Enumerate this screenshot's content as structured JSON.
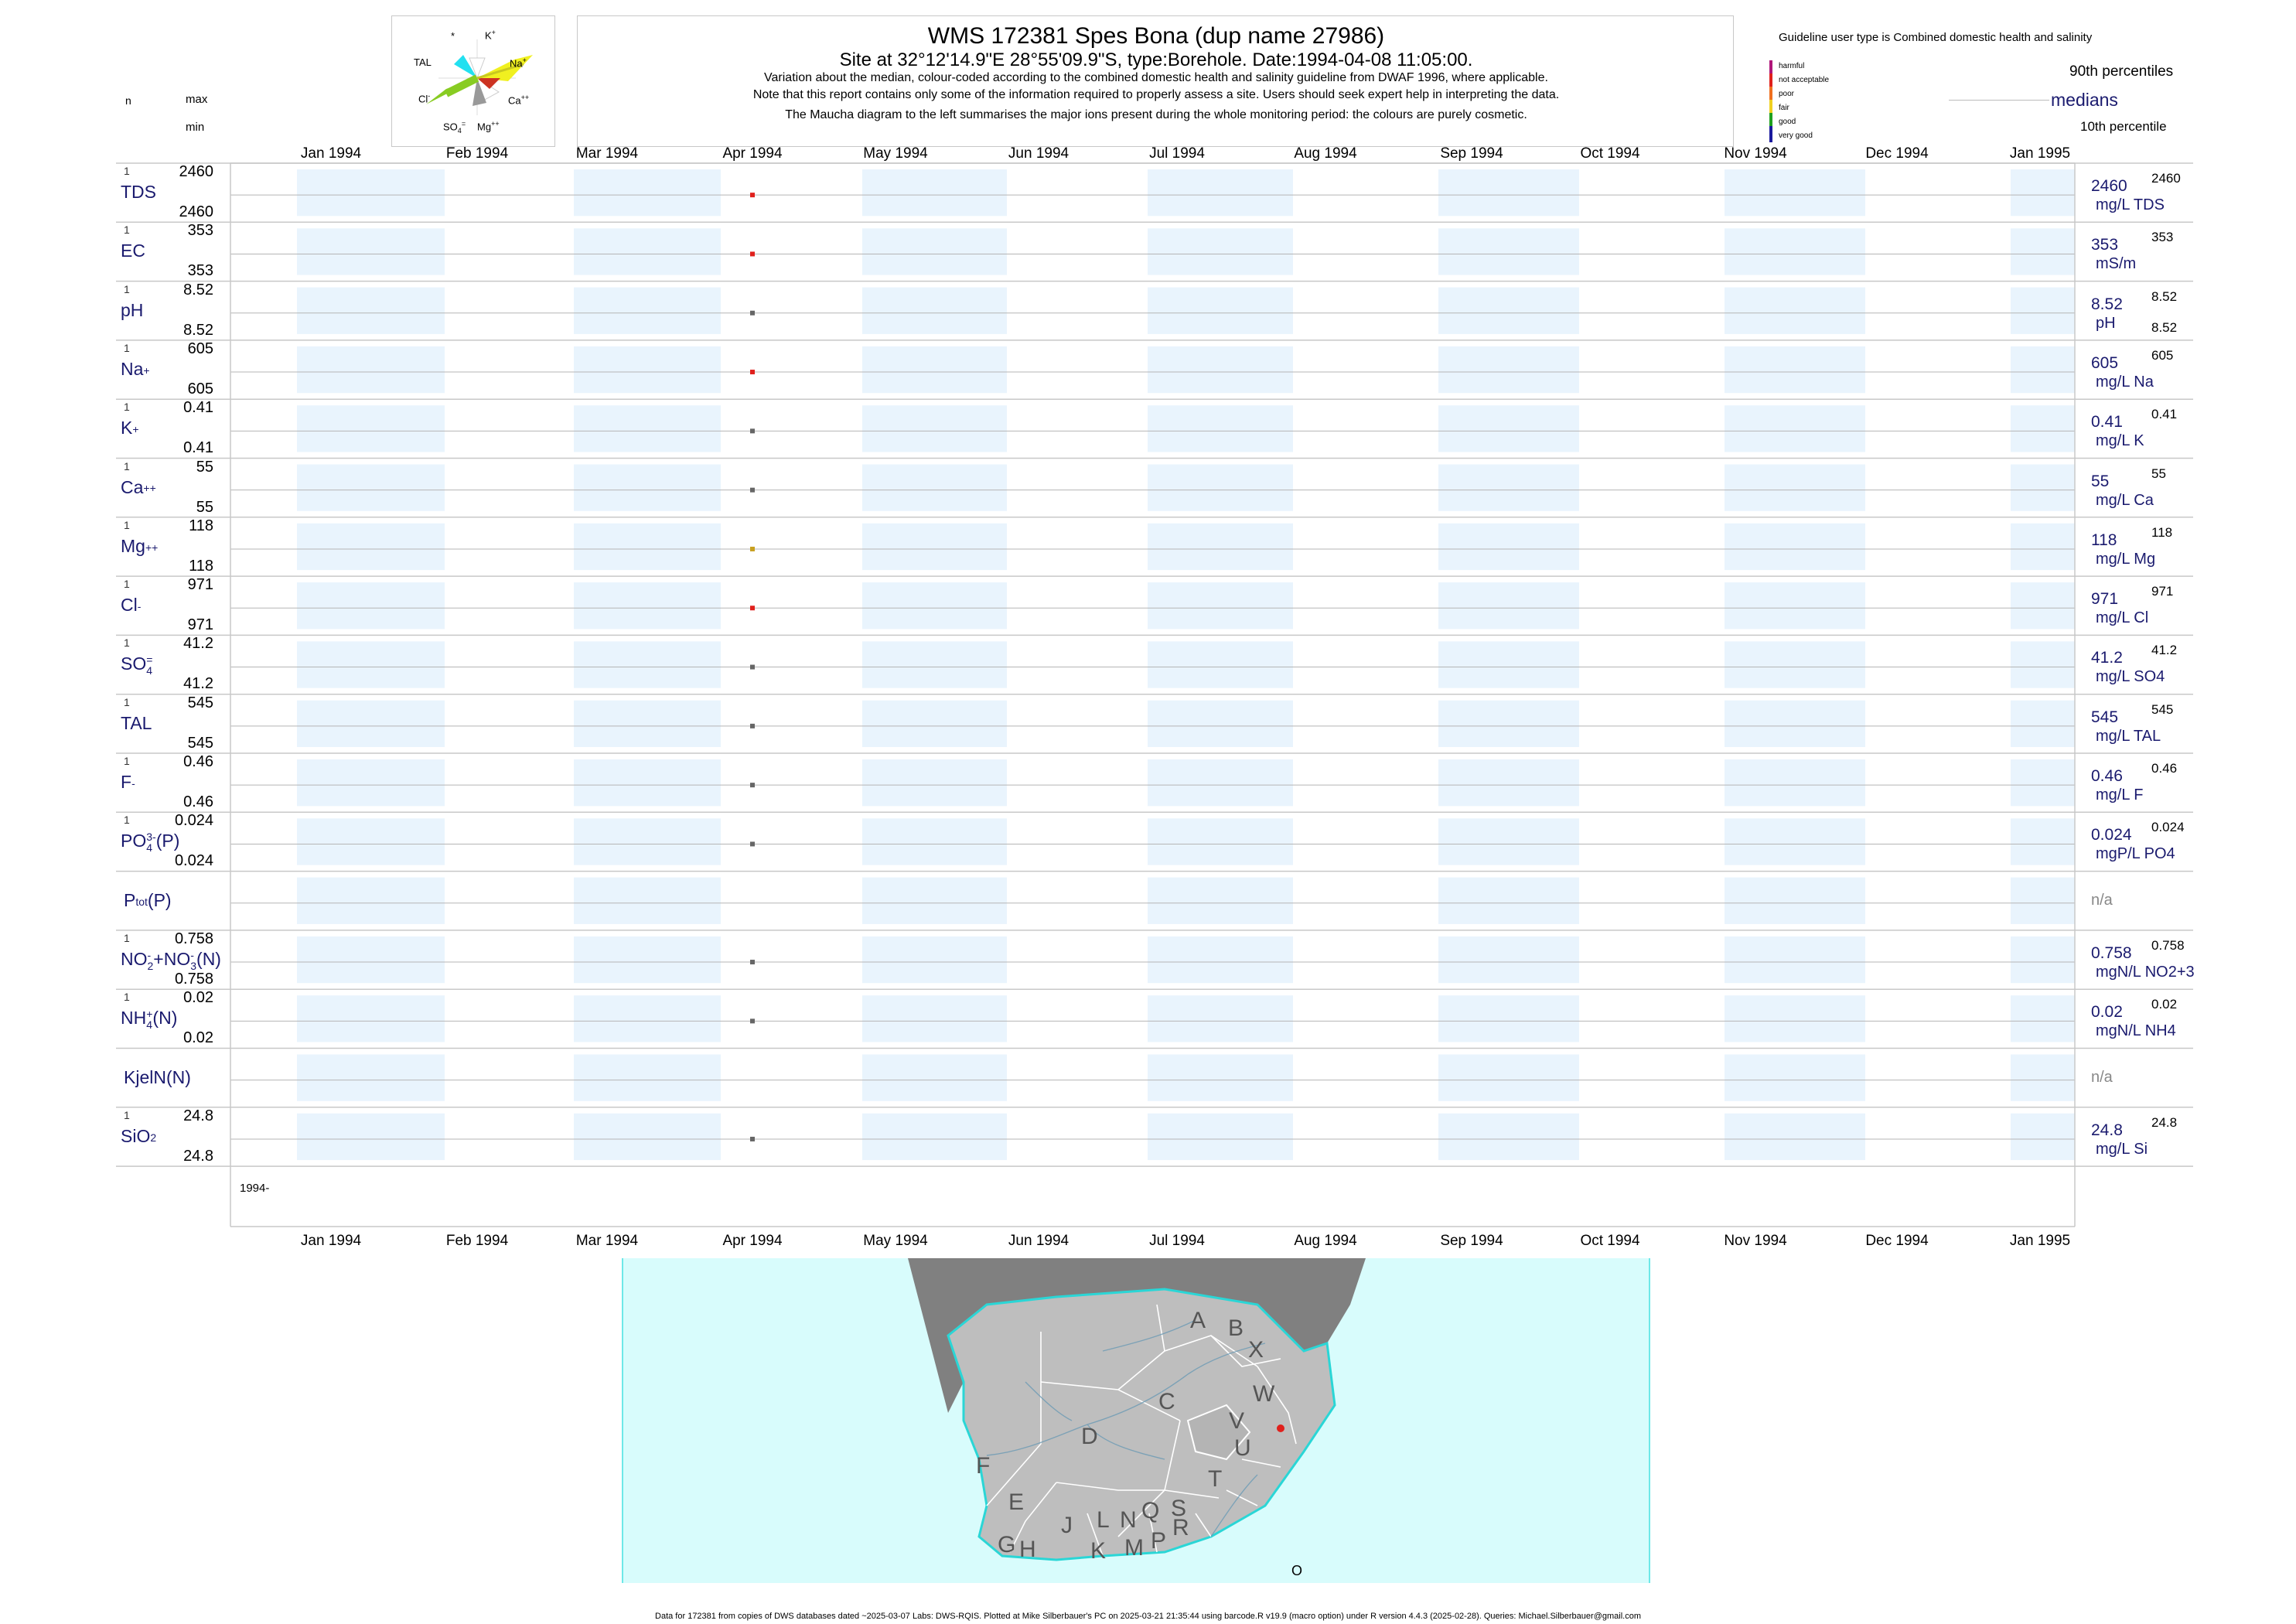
{
  "header": {
    "title": "WMS 172381  Spes Bona (dup name 27986)",
    "site": "Site at 32°12'14.9\"E 28°55'09.9\"S, type:Borehole. Date:1994-04-08 11:05:00.",
    "notes": [
      "Variation about the median,  colour-coded according to the combined domestic health and salinity guideline from DWAF 1996, where applicable.",
      "Note that this report contains only some of the information required to properly assess a site. Users should seek expert help in interpreting the data.",
      "The Maucha diagram to the left summarises the major ions present during the whole monitoring period: the colours are purely cosmetic."
    ]
  },
  "left_header": {
    "n": "n",
    "max": "max",
    "min": "min"
  },
  "maucha": {
    "labels": [
      "*",
      "K",
      "TAL",
      "Na",
      "Cl",
      "Ca",
      "SO",
      "Mg"
    ],
    "colors": {
      "TAL": "#22e0f0",
      "Na": "#f0f020",
      "Cl": "#88cc22",
      "Ca": "#999999",
      "K": "#cccccc",
      "SO4": "#cccccc",
      "Mg": "#cc3322"
    }
  },
  "legend": {
    "title": "Guideline user type is Combined domestic health and salinity",
    "classes": [
      {
        "label": "harmful",
        "color": "#b0177a"
      },
      {
        "label": "not acceptable",
        "color": "#e0201c"
      },
      {
        "label": "poor",
        "color": "#f07020"
      },
      {
        "label": "fair",
        "color": "#f0d020"
      },
      {
        "label": "good",
        "color": "#20a020"
      },
      {
        "label": "very good",
        "color": "#1a1a9e"
      }
    ],
    "p90": "90th percentiles",
    "median": "medians",
    "p10": "10th percentile"
  },
  "x_axis": {
    "months": [
      "Jan 1994",
      "Feb 1994",
      "Mar 1994",
      "Apr 1994",
      "May 1994",
      "Jun 1994",
      "Jul 1994",
      "Aug 1994",
      "Sep 1994",
      "Oct 1994",
      "Nov 1994",
      "Dec 1994",
      "Jan 1995"
    ],
    "year_label": "1994-"
  },
  "chart_data": {
    "type": "scatter",
    "sample_date": "1994-04-08",
    "series": [
      {
        "label": "TDS",
        "n": "1",
        "max": "2460",
        "min": "2460",
        "value": "2460",
        "unit": "mg/L TDS",
        "p90": "2460",
        "p10": "",
        "color": "#e0201c"
      },
      {
        "label": "EC",
        "n": "1",
        "max": "353",
        "min": "353",
        "value": "353",
        "unit": "mS/m",
        "p90": "353",
        "p10": "",
        "color": "#e0201c"
      },
      {
        "label": "pH",
        "n": "1",
        "max": "8.52",
        "min": "8.52",
        "value": "8.52",
        "unit": "pH",
        "p90": "8.52",
        "p10": "8.52",
        "color": "#666666"
      },
      {
        "label": "Na",
        "sup": "+",
        "n": "1",
        "max": "605",
        "min": "605",
        "value": "605",
        "unit": "mg/L Na",
        "p90": "605",
        "p10": "",
        "color": "#e0201c"
      },
      {
        "label": "K",
        "sup": "+",
        "n": "1",
        "max": "0.41",
        "min": "0.41",
        "value": "0.41",
        "unit": "mg/L K",
        "p90": "0.41",
        "p10": "",
        "color": "#666666"
      },
      {
        "label": "Ca",
        "sup": "++",
        "n": "1",
        "max": "55",
        "min": "55",
        "value": "55",
        "unit": "mg/L Ca",
        "p90": "55",
        "p10": "",
        "color": "#666666"
      },
      {
        "label": "Mg",
        "sup": "++",
        "n": "1",
        "max": "118",
        "min": "118",
        "value": "118",
        "unit": "mg/L Mg",
        "p90": "118",
        "p10": "",
        "color": "#c8a020"
      },
      {
        "label": "Cl",
        "sup": "-",
        "n": "1",
        "max": "971",
        "min": "971",
        "value": "971",
        "unit": "mg/L Cl",
        "p90": "971",
        "p10": "",
        "color": "#e0201c"
      },
      {
        "label": "SO",
        "sub": "4",
        "sup": "=",
        "n": "1",
        "max": "41.2",
        "min": "41.2",
        "value": "41.2",
        "unit": "mg/L SO4",
        "p90": "41.2",
        "p10": "",
        "color": "#666666"
      },
      {
        "label": "TAL",
        "n": "1",
        "max": "545",
        "min": "545",
        "value": "545",
        "unit": "mg/L TAL",
        "p90": "545",
        "p10": "",
        "color": "#666666"
      },
      {
        "label": "F",
        "sup": "-",
        "n": "1",
        "max": "0.46",
        "min": "0.46",
        "value": "0.46",
        "unit": "mg/L F",
        "p90": "0.46",
        "p10": "",
        "color": "#666666"
      },
      {
        "label": "PO",
        "sub": "4",
        "sup": "3-",
        "suffix": "(P)",
        "n": "1",
        "max": "0.024",
        "min": "0.024",
        "value": "0.024",
        "unit": "mgP/L PO4",
        "p90": "0.024",
        "p10": "",
        "color": "#666666"
      },
      {
        "label": "P",
        "sub": "tot",
        "suffix": "(P)",
        "n": "",
        "max": "",
        "min": "",
        "value": "n/a",
        "unit": "",
        "p90": "",
        "p10": "",
        "color": ""
      },
      {
        "label": "NO",
        "sub": "2",
        "sup": "-",
        "suffix": "+NO",
        "sub2": "3",
        "sup2": "-",
        "suffix2": "(N)",
        "n": "1",
        "max": "0.758",
        "min": "0.758",
        "value": "0.758",
        "unit": "mgN/L NO2+3",
        "p90": "0.758",
        "p10": "",
        "color": "#666666"
      },
      {
        "label": "NH",
        "sub": "4",
        "sup": "+",
        "suffix": "(N)",
        "n": "1",
        "max": "0.02",
        "min": "0.02",
        "value": "0.02",
        "unit": "mgN/L NH4",
        "p90": "0.02",
        "p10": "",
        "color": "#666666"
      },
      {
        "label": "KjelN(N)",
        "n": "",
        "max": "",
        "min": "",
        "value": "n/a",
        "unit": "",
        "p90": "",
        "p10": "",
        "color": ""
      },
      {
        "label": "SiO",
        "sub": "2",
        "n": "1",
        "max": "24.8",
        "min": "24.8",
        "value": "24.8",
        "unit": "mg/L Si",
        "p90": "24.8",
        "p10": "",
        "color": "#666666"
      }
    ]
  },
  "map": {
    "region_letters": [
      "A",
      "B",
      "X",
      "W",
      "C",
      "V",
      "D",
      "U",
      "T",
      "F",
      "E",
      "J",
      "L",
      "N",
      "Q",
      "S",
      "R",
      "G",
      "H",
      "K",
      "M",
      "P"
    ],
    "sea_color": "#d8fcfc",
    "land_color": "#bebebe",
    "site_color": "#e0201c",
    "marker_label": "O"
  },
  "footer": "Data for 172381 from copies of DWS databases dated ~2025-03-07 Labs: DWS-RQIS. Plotted at Mike Silberbauer's PC on 2025-03-21 21:35:44 using barcode.R v19.9 (macro option) under R version 4.4.3 (2025-02-28). Queries: Michael.Silberbauer@gmail.com"
}
